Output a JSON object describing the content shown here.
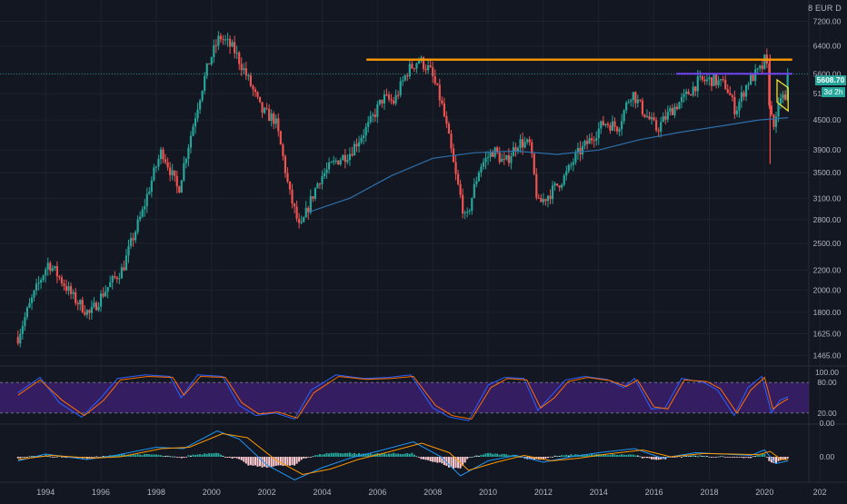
{
  "header": {
    "currency_badge": "8 EUR D"
  },
  "price_axis": {
    "last_price_label": "5608.70",
    "countdown_label": "3d 2h"
  },
  "colors": {
    "background": "#131722",
    "grid": "#1e222d",
    "up": "#26a69a",
    "down": "#ef5350",
    "moving_average": "#2f6ea8",
    "resistance_line": "#ff9800",
    "range_line": "#7b39ff",
    "stoch_k": "#2962ff",
    "stoch_d": "#ff6d00",
    "stoch_band": "#3b1f6b",
    "macd_line": "#2196f3",
    "signal_line": "#ff9800"
  },
  "chart_data": [
    {
      "type": "candlestick",
      "interval": "monthly",
      "x_axis_ticks": [
        "1994",
        "1996",
        "1998",
        "2000",
        "2002",
        "2004",
        "2006",
        "2008",
        "2010",
        "2012",
        "2014",
        "2016",
        "2018",
        "2020",
        "202"
      ],
      "y_scale": "log",
      "y_ticks": [
        "7200.00",
        "6400.00",
        "5600.00",
        "5100.00",
        "4500.00",
        "3900.00",
        "3500.00",
        "3100.00",
        "2800.00",
        "2500.00",
        "2200.00",
        "2000.00",
        "1800.00",
        "1625.00",
        "1465.00"
      ],
      "last_price": 5608.7,
      "close_path": [
        {
          "t": 1993.0,
          "v": 1600
        },
        {
          "t": 1994.1,
          "v": 2280
        },
        {
          "t": 1995.0,
          "v": 1930
        },
        {
          "t": 1995.6,
          "v": 1780
        },
        {
          "t": 1996.1,
          "v": 1980
        },
        {
          "t": 1996.8,
          "v": 2220
        },
        {
          "t": 1997.5,
          "v": 2900
        },
        {
          "t": 1998.2,
          "v": 3900
        },
        {
          "t": 1998.8,
          "v": 3200
        },
        {
          "t": 1999.3,
          "v": 4300
        },
        {
          "t": 1999.9,
          "v": 5900
        },
        {
          "t": 2000.3,
          "v": 6700
        },
        {
          "t": 2000.8,
          "v": 6300
        },
        {
          "t": 2001.3,
          "v": 5500
        },
        {
          "t": 2001.8,
          "v": 4700
        },
        {
          "t": 2002.3,
          "v": 4500
        },
        {
          "t": 2002.8,
          "v": 3200
        },
        {
          "t": 2003.2,
          "v": 2650
        },
        {
          "t": 2003.9,
          "v": 3400
        },
        {
          "t": 2004.5,
          "v": 3700
        },
        {
          "t": 2005.0,
          "v": 3850
        },
        {
          "t": 2005.7,
          "v": 4400
        },
        {
          "t": 2006.2,
          "v": 5000
        },
        {
          "t": 2006.6,
          "v": 4900
        },
        {
          "t": 2007.1,
          "v": 5700
        },
        {
          "t": 2007.5,
          "v": 6000
        },
        {
          "t": 2007.9,
          "v": 5700
        },
        {
          "t": 2008.3,
          "v": 4900
        },
        {
          "t": 2008.8,
          "v": 3500
        },
        {
          "t": 2009.2,
          "v": 2750
        },
        {
          "t": 2009.7,
          "v": 3600
        },
        {
          "t": 2010.2,
          "v": 3900
        },
        {
          "t": 2010.6,
          "v": 3650
        },
        {
          "t": 2011.1,
          "v": 4050
        },
        {
          "t": 2011.5,
          "v": 4000
        },
        {
          "t": 2011.8,
          "v": 3000
        },
        {
          "t": 2012.3,
          "v": 3200
        },
        {
          "t": 2012.8,
          "v": 3450
        },
        {
          "t": 2013.2,
          "v": 3800
        },
        {
          "t": 2013.7,
          "v": 4100
        },
        {
          "t": 2014.2,
          "v": 4450
        },
        {
          "t": 2014.7,
          "v": 4350
        },
        {
          "t": 2015.2,
          "v": 5150
        },
        {
          "t": 2015.6,
          "v": 4700
        },
        {
          "t": 2016.1,
          "v": 4300
        },
        {
          "t": 2016.6,
          "v": 4700
        },
        {
          "t": 2017.1,
          "v": 5000
        },
        {
          "t": 2017.6,
          "v": 5400
        },
        {
          "t": 2018.1,
          "v": 5450
        },
        {
          "t": 2018.6,
          "v": 5300
        },
        {
          "t": 2018.95,
          "v": 4700
        },
        {
          "t": 2019.4,
          "v": 5400
        },
        {
          "t": 2019.9,
          "v": 5750
        },
        {
          "t": 2020.05,
          "v": 6100
        },
        {
          "t": 2020.2,
          "v": 4600
        },
        {
          "t": 2020.4,
          "v": 4400
        },
        {
          "t": 2020.6,
          "v": 5100
        },
        {
          "t": 2020.75,
          "v": 4900
        },
        {
          "t": 2020.85,
          "v": 5608.7
        }
      ],
      "moving_average_path": [
        {
          "t": 2003.5,
          "v": 2900
        },
        {
          "t": 2005.0,
          "v": 3100
        },
        {
          "t": 2006.5,
          "v": 3450
        },
        {
          "t": 2008.0,
          "v": 3750
        },
        {
          "t": 2009.5,
          "v": 3850
        },
        {
          "t": 2011.0,
          "v": 3880
        },
        {
          "t": 2012.5,
          "v": 3820
        },
        {
          "t": 2014.0,
          "v": 3900
        },
        {
          "t": 2015.5,
          "v": 4100
        },
        {
          "t": 2017.0,
          "v": 4250
        },
        {
          "t": 2018.5,
          "v": 4380
        },
        {
          "t": 2019.8,
          "v": 4500
        },
        {
          "t": 2020.85,
          "v": 4550
        }
      ],
      "drawings": {
        "resistance": {
          "t_start": 2005.6,
          "t_end": 2021.0,
          "v": 6000
        },
        "range_top": {
          "t_start": 2016.8,
          "t_end": 2021.0,
          "v": 5608.7
        },
        "channel": [
          {
            "t": 2020.45,
            "v": 5450
          },
          {
            "t": 2020.85,
            "v": 5250
          },
          {
            "t": 2020.85,
            "v": 4700
          },
          {
            "t": 2020.45,
            "v": 4900
          }
        ]
      }
    },
    {
      "type": "line",
      "name": "stochastic",
      "y_ticks": [
        "100.00",
        "80.00",
        "20.00",
        "0.00"
      ],
      "band": [
        20,
        80
      ],
      "series_k": [
        {
          "t": 1993.0,
          "v": 60
        },
        {
          "t": 1993.8,
          "v": 90
        },
        {
          "t": 1994.5,
          "v": 40
        },
        {
          "t": 1995.3,
          "v": 12
        },
        {
          "t": 1996.0,
          "v": 50
        },
        {
          "t": 1996.6,
          "v": 88
        },
        {
          "t": 1997.6,
          "v": 95
        },
        {
          "t": 1998.5,
          "v": 92
        },
        {
          "t": 1998.9,
          "v": 50
        },
        {
          "t": 1999.5,
          "v": 95
        },
        {
          "t": 2000.4,
          "v": 92
        },
        {
          "t": 2001.0,
          "v": 35
        },
        {
          "t": 2001.6,
          "v": 15
        },
        {
          "t": 2002.3,
          "v": 20
        },
        {
          "t": 2003.0,
          "v": 8
        },
        {
          "t": 2003.6,
          "v": 65
        },
        {
          "t": 2004.5,
          "v": 95
        },
        {
          "t": 2005.5,
          "v": 88
        },
        {
          "t": 2006.4,
          "v": 90
        },
        {
          "t": 2007.2,
          "v": 95
        },
        {
          "t": 2008.0,
          "v": 30
        },
        {
          "t": 2008.6,
          "v": 12
        },
        {
          "t": 2009.3,
          "v": 5
        },
        {
          "t": 2010.0,
          "v": 75
        },
        {
          "t": 2010.6,
          "v": 90
        },
        {
          "t": 2011.3,
          "v": 88
        },
        {
          "t": 2011.8,
          "v": 25
        },
        {
          "t": 2012.3,
          "v": 55
        },
        {
          "t": 2012.8,
          "v": 85
        },
        {
          "t": 2013.5,
          "v": 92
        },
        {
          "t": 2014.3,
          "v": 86
        },
        {
          "t": 2014.9,
          "v": 70
        },
        {
          "t": 2015.3,
          "v": 88
        },
        {
          "t": 2015.9,
          "v": 28
        },
        {
          "t": 2016.4,
          "v": 30
        },
        {
          "t": 2017.0,
          "v": 88
        },
        {
          "t": 2017.8,
          "v": 80
        },
        {
          "t": 2018.3,
          "v": 65
        },
        {
          "t": 2018.9,
          "v": 15
        },
        {
          "t": 2019.4,
          "v": 70
        },
        {
          "t": 2019.9,
          "v": 92
        },
        {
          "t": 2020.25,
          "v": 20
        },
        {
          "t": 2020.55,
          "v": 45
        },
        {
          "t": 2020.85,
          "v": 52
        }
      ],
      "series_d": [
        {
          "t": 1993.0,
          "v": 55
        },
        {
          "t": 1993.8,
          "v": 85
        },
        {
          "t": 1994.6,
          "v": 45
        },
        {
          "t": 1995.4,
          "v": 15
        },
        {
          "t": 1996.1,
          "v": 45
        },
        {
          "t": 1996.7,
          "v": 85
        },
        {
          "t": 1997.7,
          "v": 92
        },
        {
          "t": 1998.6,
          "v": 90
        },
        {
          "t": 1999.0,
          "v": 55
        },
        {
          "t": 1999.6,
          "v": 92
        },
        {
          "t": 2000.5,
          "v": 90
        },
        {
          "t": 2001.1,
          "v": 40
        },
        {
          "t": 2001.7,
          "v": 18
        },
        {
          "t": 2002.4,
          "v": 22
        },
        {
          "t": 2003.1,
          "v": 10
        },
        {
          "t": 2003.7,
          "v": 60
        },
        {
          "t": 2004.6,
          "v": 92
        },
        {
          "t": 2005.6,
          "v": 86
        },
        {
          "t": 2006.5,
          "v": 88
        },
        {
          "t": 2007.3,
          "v": 92
        },
        {
          "t": 2008.1,
          "v": 35
        },
        {
          "t": 2008.7,
          "v": 15
        },
        {
          "t": 2009.4,
          "v": 8
        },
        {
          "t": 2010.1,
          "v": 70
        },
        {
          "t": 2010.7,
          "v": 88
        },
        {
          "t": 2011.4,
          "v": 85
        },
        {
          "t": 2011.9,
          "v": 30
        },
        {
          "t": 2012.4,
          "v": 50
        },
        {
          "t": 2012.9,
          "v": 82
        },
        {
          "t": 2013.6,
          "v": 90
        },
        {
          "t": 2014.4,
          "v": 84
        },
        {
          "t": 2015.0,
          "v": 72
        },
        {
          "t": 2015.4,
          "v": 85
        },
        {
          "t": 2016.0,
          "v": 32
        },
        {
          "t": 2016.5,
          "v": 28
        },
        {
          "t": 2017.1,
          "v": 85
        },
        {
          "t": 2017.9,
          "v": 82
        },
        {
          "t": 2018.4,
          "v": 68
        },
        {
          "t": 2019.0,
          "v": 20
        },
        {
          "t": 2019.5,
          "v": 65
        },
        {
          "t": 2020.0,
          "v": 90
        },
        {
          "t": 2020.3,
          "v": 28
        },
        {
          "t": 2020.6,
          "v": 40
        },
        {
          "t": 2020.85,
          "v": 48
        }
      ]
    },
    {
      "type": "bar",
      "name": "macd",
      "y_ticks": [
        "0.00"
      ],
      "macd_path": [
        {
          "t": 1993.0,
          "v": -0.15
        },
        {
          "t": 1994.0,
          "v": 0.1
        },
        {
          "t": 1995.5,
          "v": -0.1
        },
        {
          "t": 1996.5,
          "v": 0.05
        },
        {
          "t": 1998.0,
          "v": 0.35
        },
        {
          "t": 1999.0,
          "v": 0.3
        },
        {
          "t": 2000.2,
          "v": 0.95
        },
        {
          "t": 2001.0,
          "v": 0.65
        },
        {
          "t": 2002.0,
          "v": -0.3
        },
        {
          "t": 2003.0,
          "v": -0.85
        },
        {
          "t": 2004.0,
          "v": -0.4
        },
        {
          "t": 2005.0,
          "v": -0.05
        },
        {
          "t": 2006.0,
          "v": 0.2
        },
        {
          "t": 2007.3,
          "v": 0.55
        },
        {
          "t": 2008.3,
          "v": 0.0
        },
        {
          "t": 2009.0,
          "v": -0.7
        },
        {
          "t": 2010.0,
          "v": -0.15
        },
        {
          "t": 2011.0,
          "v": 0.05
        },
        {
          "t": 2012.0,
          "v": -0.2
        },
        {
          "t": 2013.0,
          "v": 0.0
        },
        {
          "t": 2014.0,
          "v": 0.15
        },
        {
          "t": 2015.3,
          "v": 0.3
        },
        {
          "t": 2016.3,
          "v": -0.05
        },
        {
          "t": 2017.5,
          "v": 0.15
        },
        {
          "t": 2018.5,
          "v": 0.1
        },
        {
          "t": 2019.5,
          "v": 0.05
        },
        {
          "t": 2020.0,
          "v": 0.25
        },
        {
          "t": 2020.4,
          "v": -0.25
        },
        {
          "t": 2020.85,
          "v": -0.15
        }
      ],
      "signal_path": [
        {
          "t": 1993.0,
          "v": -0.1
        },
        {
          "t": 1994.2,
          "v": 0.05
        },
        {
          "t": 1995.7,
          "v": -0.05
        },
        {
          "t": 1996.7,
          "v": 0.0
        },
        {
          "t": 1998.2,
          "v": 0.3
        },
        {
          "t": 1999.2,
          "v": 0.35
        },
        {
          "t": 2000.4,
          "v": 0.85
        },
        {
          "t": 2001.3,
          "v": 0.7
        },
        {
          "t": 2002.3,
          "v": -0.1
        },
        {
          "t": 2003.3,
          "v": -0.65
        },
        {
          "t": 2004.3,
          "v": -0.45
        },
        {
          "t": 2005.3,
          "v": -0.1
        },
        {
          "t": 2006.3,
          "v": 0.15
        },
        {
          "t": 2007.6,
          "v": 0.5
        },
        {
          "t": 2008.6,
          "v": 0.15
        },
        {
          "t": 2009.3,
          "v": -0.5
        },
        {
          "t": 2010.3,
          "v": -0.2
        },
        {
          "t": 2011.3,
          "v": 0.05
        },
        {
          "t": 2012.3,
          "v": -0.15
        },
        {
          "t": 2013.3,
          "v": -0.05
        },
        {
          "t": 2014.3,
          "v": 0.1
        },
        {
          "t": 2015.6,
          "v": 0.25
        },
        {
          "t": 2016.6,
          "v": 0.0
        },
        {
          "t": 2017.8,
          "v": 0.12
        },
        {
          "t": 2018.8,
          "v": 0.1
        },
        {
          "t": 2019.8,
          "v": 0.08
        },
        {
          "t": 2020.2,
          "v": 0.2
        },
        {
          "t": 2020.6,
          "v": -0.1
        },
        {
          "t": 2020.85,
          "v": -0.1
        }
      ]
    }
  ]
}
